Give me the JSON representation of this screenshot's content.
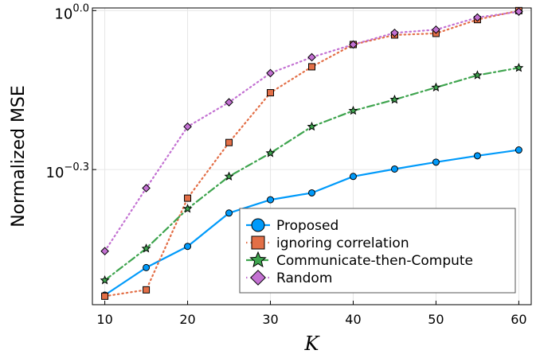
{
  "chart_data": {
    "type": "line",
    "title": "",
    "xlabel": "K",
    "ylabel": "Normalized MSE",
    "x": [
      10,
      15,
      20,
      25,
      30,
      35,
      40,
      45,
      50,
      55,
      60
    ],
    "xlim": [
      8.5,
      61.5
    ],
    "ylim": [
      -0.555,
      0.005
    ],
    "y_scale": "log10",
    "x_ticks": [
      10,
      20,
      30,
      40,
      50,
      60
    ],
    "x_tick_labels": [
      "10",
      "20",
      "30",
      "40",
      "50",
      "60"
    ],
    "y_ticks": [
      0.0,
      -0.3
    ],
    "y_tick_labels": [
      {
        "base": "10",
        "exp": "0.0"
      },
      {
        "base": "10",
        "exp": "−0.3"
      }
    ],
    "grid": true,
    "legend_position": "bottom-right",
    "series": [
      {
        "name": "Proposed",
        "color": "#009AFA",
        "line_style": "solid",
        "marker": "circle",
        "log10_values": [
          -0.537,
          -0.485,
          -0.445,
          -0.382,
          -0.357,
          -0.344,
          -0.313,
          -0.299,
          -0.286,
          -0.274,
          -0.263
        ]
      },
      {
        "name": "ignoring correlation",
        "color": "#E36F47",
        "line_style": "dotted",
        "marker": "square",
        "log10_values": [
          -0.539,
          -0.527,
          -0.354,
          -0.249,
          -0.155,
          -0.106,
          -0.064,
          -0.046,
          -0.043,
          -0.017,
          0.0
        ]
      },
      {
        "name": "Communicate-then-Compute",
        "color": "#3EA44E",
        "line_style": "dashdot",
        "marker": "star",
        "log10_values": [
          -0.509,
          -0.449,
          -0.374,
          -0.313,
          -0.269,
          -0.219,
          -0.189,
          -0.168,
          -0.145,
          -0.122,
          -0.108
        ]
      },
      {
        "name": "Random",
        "color": "#C371D2",
        "line_style": "dotted",
        "marker": "diamond",
        "log10_values": [
          -0.454,
          -0.335,
          -0.219,
          -0.173,
          -0.118,
          -0.088,
          -0.064,
          -0.042,
          -0.036,
          -0.013,
          -0.002
        ]
      }
    ]
  }
}
